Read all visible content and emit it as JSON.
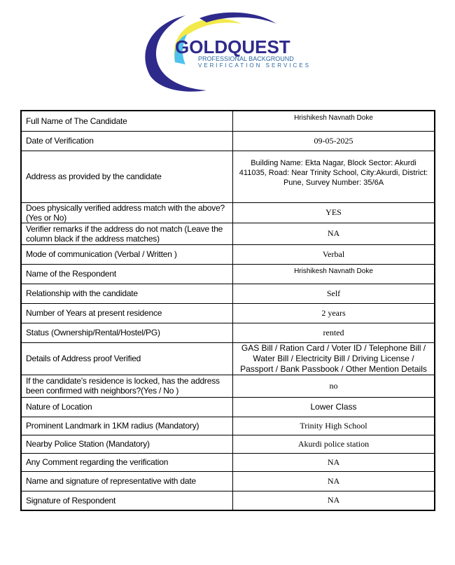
{
  "logo": {
    "brand": "GOLDQUEST",
    "tagline1": "PROFESSIONAL BACKGROUND",
    "tagline2": "VERIFICATION SERVICES"
  },
  "rows": [
    {
      "label": "Full Name of The Candidate",
      "value": "Hrishikesh Navnath Doke"
    },
    {
      "label": "Date of Verification",
      "value": "09-05-2025"
    },
    {
      "label": "Address as provided by the candidate",
      "value": "Building Name: Ekta Nagar, Block Sector: Akurdi 411035, Road: Near Trinity School, City:Akurdi, District: Pune, Survey Number: 35/6A"
    },
    {
      "label": "Does physically verified address match with the above? (Yes or No)",
      "value": "YES"
    },
    {
      "label": "Verifier remarks if the address do not match (Leave the column black if the address matches)",
      "value": "NA"
    },
    {
      "label": "Mode of communication (Verbal / Written )",
      "value": "Verbal"
    },
    {
      "label": "Name of the Respondent",
      "value": "Hrishikesh Navnath Doke"
    },
    {
      "label": "Relationship with the candidate",
      "value": "Self"
    },
    {
      "label": "Number of Years at present residence",
      "value": "2 years"
    },
    {
      "label": "Status (Ownership/Rental/Hostel/PG)",
      "value": "rented"
    },
    {
      "label": "Details of Address proof Verified",
      "value": "GAS Bill / Ration Card / Voter ID / Telephone Bill / Water Bill / Electricity Bill / Driving License / Passport / Bank Passbook / Other Mention Details"
    },
    {
      "label": "If the candidate's residence is locked, has the address been confirmed with neighbors?(Yes / No )",
      "value": "no"
    },
    {
      "label": "Nature of Location",
      "value": "Lower Class"
    },
    {
      "label": "Prominent Landmark in 1KM radius (Mandatory)",
      "value": "Trinity High School"
    },
    {
      "label": "Nearby Police Station (Mandatory)",
      "value": "Akurdi police station"
    },
    {
      "label": "Any Comment regarding the verification",
      "value": "NA"
    },
    {
      "label": "Name and signature of representative with date",
      "value": "NA"
    },
    {
      "label": "Signature of Respondent",
      "value": "NA"
    }
  ]
}
